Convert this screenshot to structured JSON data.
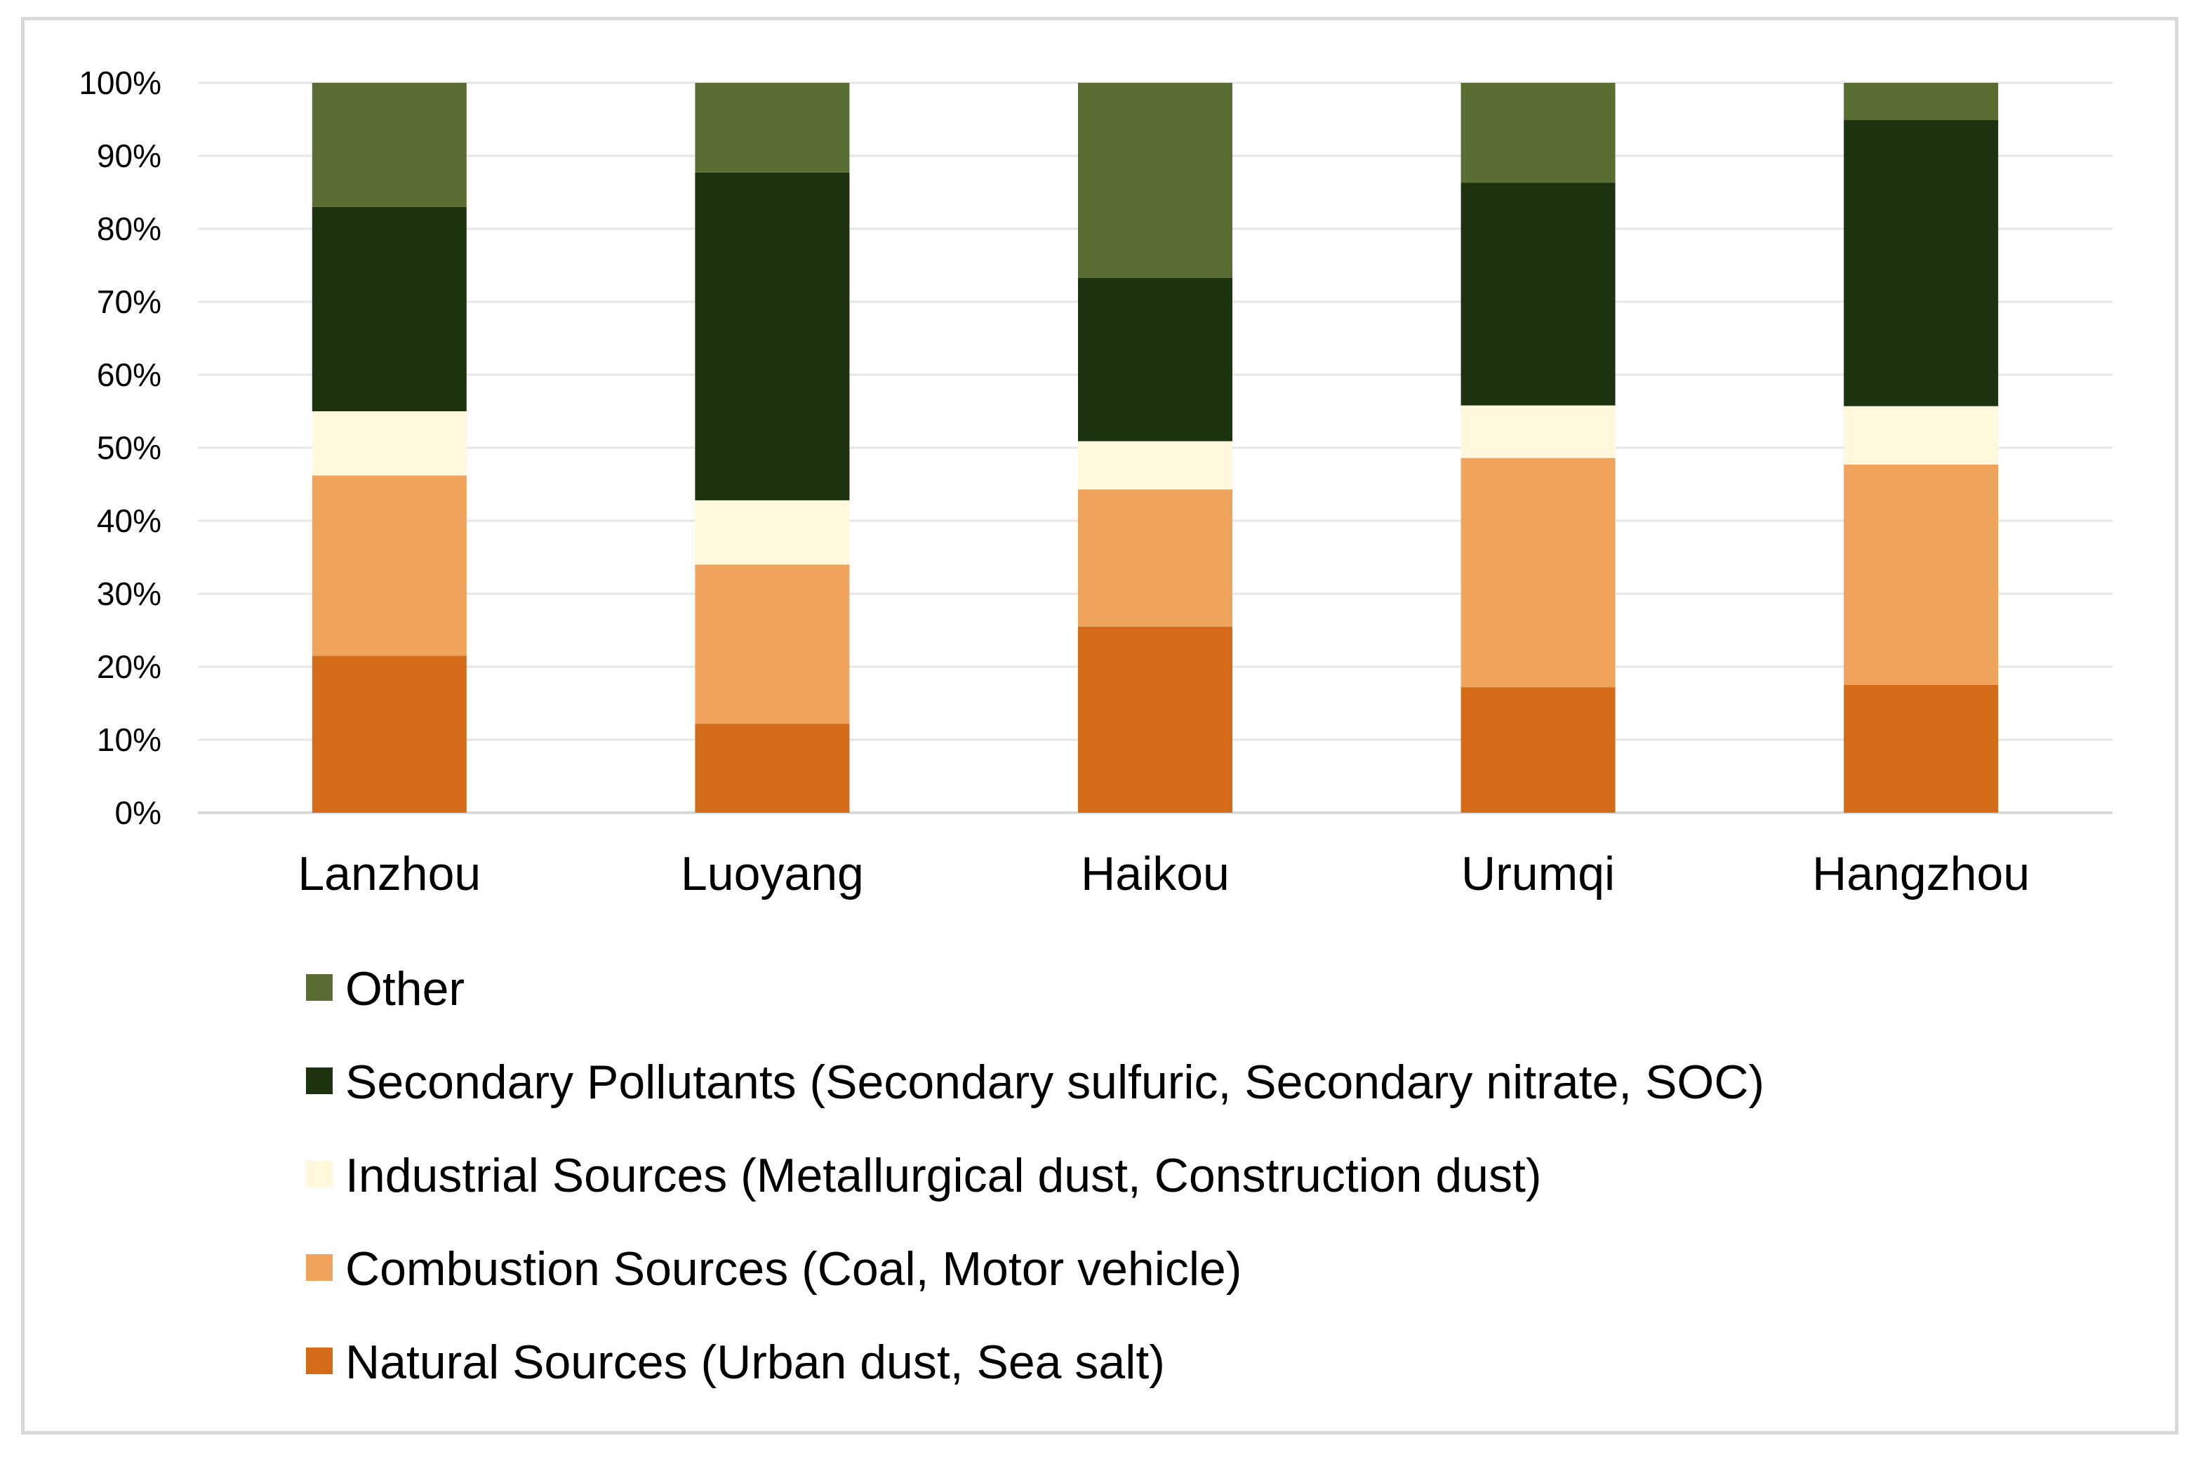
{
  "chart_data": {
    "type": "bar",
    "stacked": true,
    "percent": true,
    "categories": [
      "Lanzhou",
      "Luoyang",
      "Haikou",
      "Urumqi",
      "Hangzhou"
    ],
    "ylim": [
      0,
      100
    ],
    "yticks": [
      "0%",
      "10%",
      "20%",
      "30%",
      "40%",
      "50%",
      "60%",
      "70%",
      "80%",
      "90%",
      "100%"
    ],
    "grid": true,
    "legend_position": "bottom",
    "series": [
      {
        "name": "Natural Sources (Urban dust, Sea salt)",
        "color": "#d46b19",
        "values": [
          21.5,
          12.2,
          25.5,
          17.2,
          17.5
        ]
      },
      {
        "name": "Combustion Sources (Coal, Motor vehicle)",
        "color": "#efa35c",
        "values": [
          24.7,
          21.8,
          18.8,
          31.4,
          30.2
        ]
      },
      {
        "name": "Industrial Sources (Metallurgical dust, Construction dust)",
        "color": "#fff8dc",
        "values": [
          8.8,
          8.8,
          6.6,
          7.2,
          8.0
        ]
      },
      {
        "name": "Secondary Pollutants (Secondary sulfuric, Secondary nitrate, SOC)",
        "color": "#1d3310",
        "values": [
          28.0,
          44.9,
          22.4,
          30.5,
          39.2
        ]
      },
      {
        "name": "Other",
        "color": "#5a6e33",
        "values": [
          17.0,
          12.3,
          26.7,
          13.7,
          5.1
        ]
      }
    ]
  }
}
